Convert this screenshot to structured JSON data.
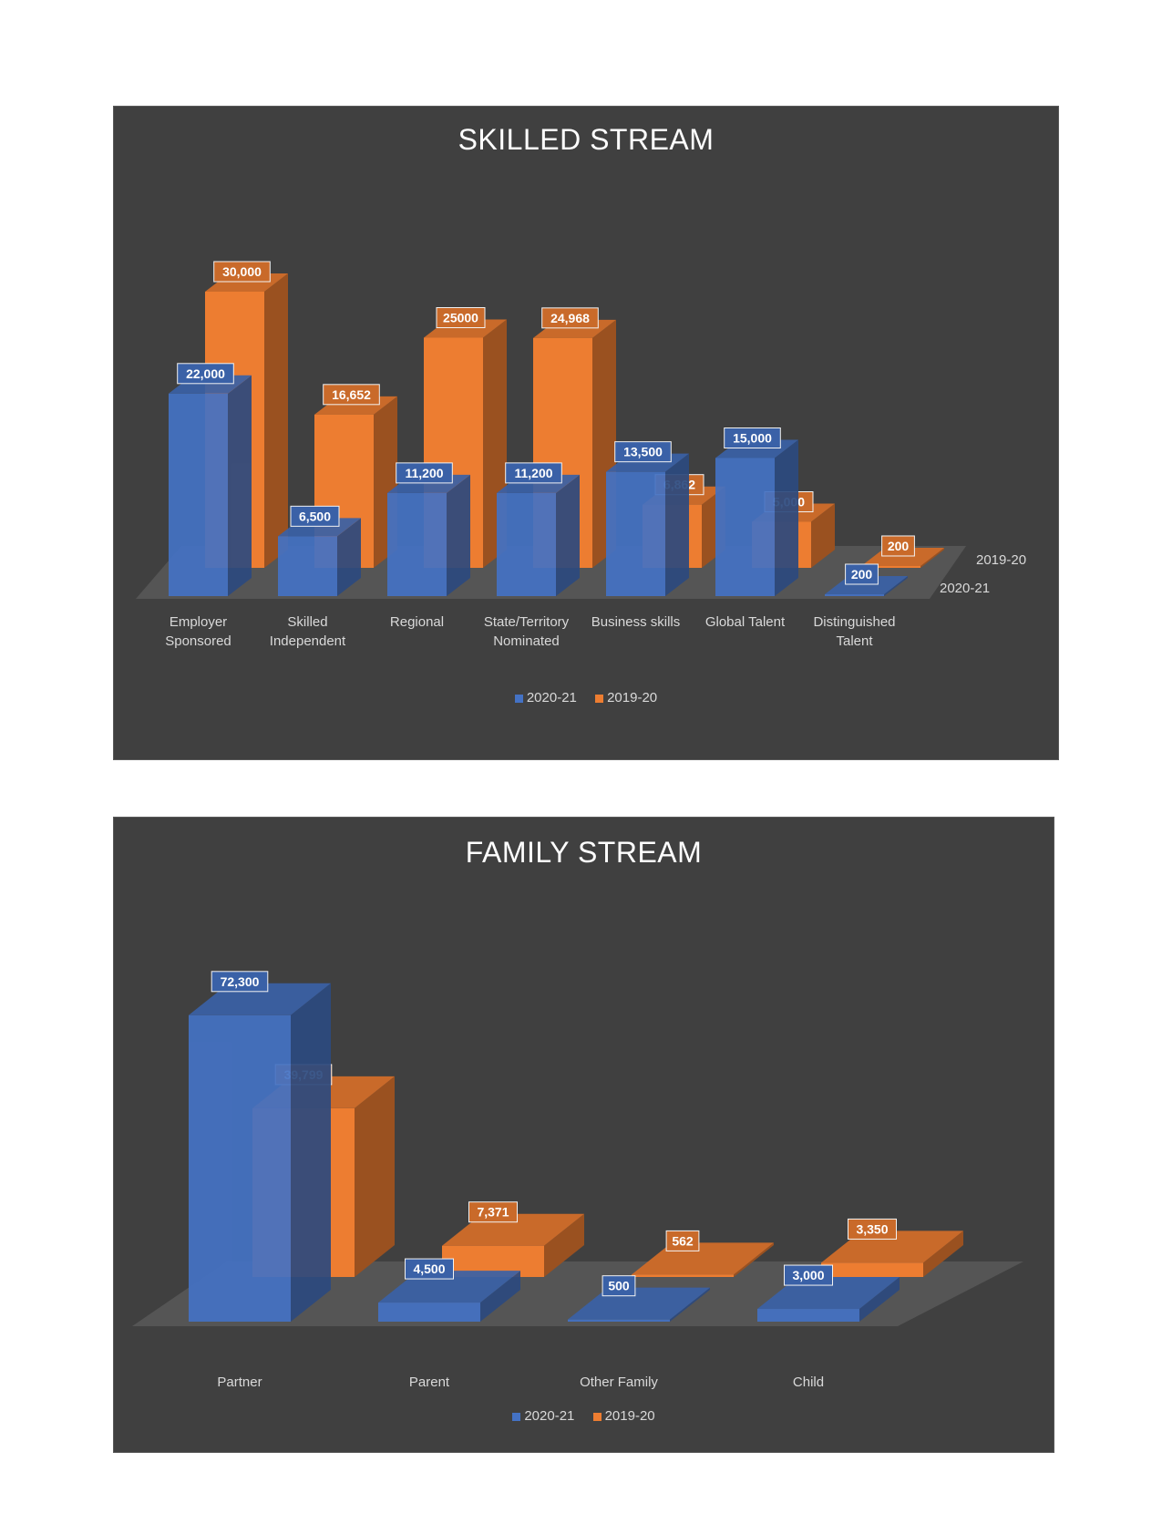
{
  "colors": {
    "series_2020_21": "#4472C4",
    "series_2019_20": "#ED7D31",
    "panel": "#404040",
    "floor": "#595959"
  },
  "chart_data": [
    {
      "type": "bar",
      "title": "SKILLED STREAM",
      "categories": [
        [
          "Employer",
          "Sponsored"
        ],
        [
          "Skilled",
          "Independent"
        ],
        [
          "Regional"
        ],
        [
          "State/Territory",
          "Nominated"
        ],
        [
          "Business skills"
        ],
        [
          "Global Talent"
        ],
        [
          "Distinguished",
          "Talent"
        ]
      ],
      "series": [
        {
          "name": "2020-21",
          "values": [
            22000,
            6500,
            11200,
            11200,
            13500,
            15000,
            200
          ],
          "labels": [
            "22,000",
            "6,500",
            "11,200",
            "11,200",
            "13,500",
            "15,000",
            "200"
          ]
        },
        {
          "name": "2019-20",
          "values": [
            30000,
            16652,
            25000,
            24968,
            6862,
            5000,
            200
          ],
          "labels": [
            "30,000",
            "16,652",
            "25000",
            "24,968",
            "6,862",
            "5,000",
            "200"
          ]
        }
      ],
      "depth_axis_labels": [
        "2019-20",
        "2020-21"
      ],
      "legend": "bottom",
      "style": "3d-column"
    },
    {
      "type": "bar",
      "title": "FAMILY STREAM",
      "categories": [
        [
          "Partner"
        ],
        [
          "Parent"
        ],
        [
          "Other Family"
        ],
        [
          "Child"
        ]
      ],
      "series": [
        {
          "name": "2020-21",
          "values": [
            72300,
            4500,
            500,
            3000
          ],
          "labels": [
            "72,300",
            "4,500",
            "500",
            "3,000"
          ]
        },
        {
          "name": "2019-20",
          "values": [
            39799,
            7371,
            562,
            3350
          ],
          "labels": [
            "39,799",
            "7,371",
            "562",
            "3,350"
          ]
        }
      ],
      "legend": "bottom",
      "style": "3d-column"
    }
  ]
}
